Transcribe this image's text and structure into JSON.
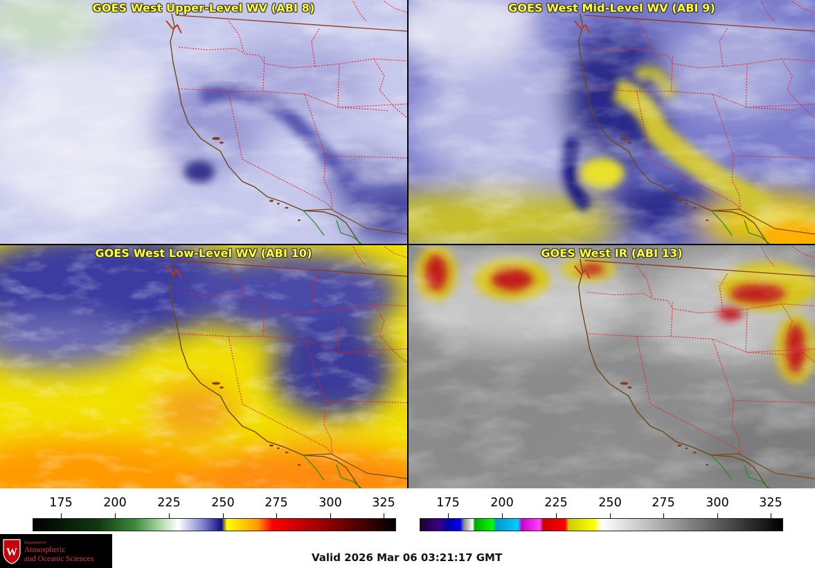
{
  "panels": {
    "upper": {
      "title": "GOES West Upper-Level WV (ABI 8)"
    },
    "mid": {
      "title": "GOES West Mid-Level WV (ABI 9)"
    },
    "low": {
      "title": "GOES West Low-Level WV (ABI 10)"
    },
    "ir": {
      "title": "GOES West IR (ABI 13)"
    }
  },
  "colorbar_left": {
    "ticks": [
      "175",
      "200",
      "225",
      "250",
      "275",
      "300",
      "325"
    ]
  },
  "colorbar_right": {
    "ticks": [
      "175",
      "200",
      "225",
      "250",
      "275",
      "300",
      "325"
    ]
  },
  "logo": {
    "line1": "Department of",
    "line2": "Atmospheric",
    "line3": "and Oceanic Sciences"
  },
  "valid_time": "Valid 2026 Mar 06 03:21:17 GMT",
  "colors": {
    "title_text": "#ffff33",
    "state_borders": "#e8201e",
    "coastline": "#6b4a12",
    "mexico_border": "#1f8a1f"
  }
}
